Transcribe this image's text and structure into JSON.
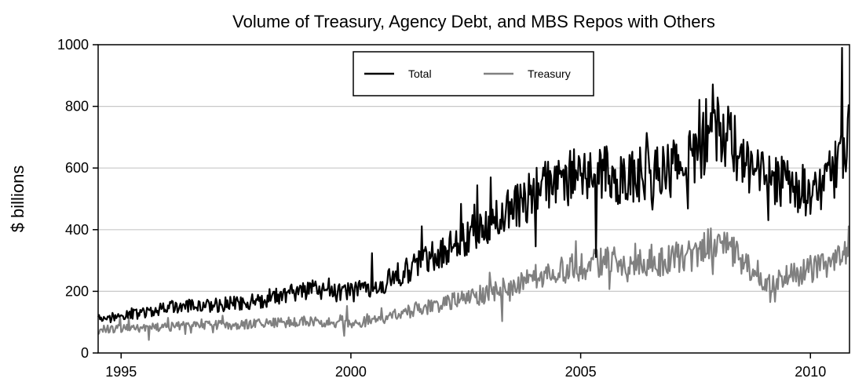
{
  "chart_data": {
    "type": "line",
    "title": "Volume of Treasury, Agency Debt, and MBS Repos with Others",
    "ylabel": "$ billions",
    "xlabel": "",
    "xlim": [
      1994.5,
      2010.85
    ],
    "ylim": [
      0,
      1000
    ],
    "x_ticks": [
      1995,
      2000,
      2005,
      2010
    ],
    "x_tick_labels": [
      "1995",
      "2000",
      "2005",
      "2010"
    ],
    "y_ticks": [
      0,
      200,
      400,
      600,
      800,
      1000
    ],
    "y_tick_labels": [
      "0",
      "200",
      "400",
      "600",
      "800",
      "1000"
    ],
    "grid": "horizontal",
    "legend_position": "top-center",
    "x_unit": "year",
    "series": [
      {
        "name": "Total",
        "color": "#000000",
        "x": [
          1994.5,
          1995.0,
          1995.5,
          1996.0,
          1996.5,
          1997.0,
          1997.5,
          1998.0,
          1998.5,
          1999.0,
          1999.5,
          2000.0,
          2000.5,
          2001.0,
          2001.5,
          2002.0,
          2002.5,
          2003.0,
          2003.5,
          2004.0,
          2004.5,
          2005.0,
          2005.5,
          2006.0,
          2006.5,
          2007.0,
          2007.5,
          2008.0,
          2008.5,
          2009.0,
          2009.5,
          2010.0,
          2010.5,
          2010.85
        ],
        "values": [
          110,
          125,
          130,
          145,
          150,
          155,
          160,
          170,
          190,
          205,
          200,
          195,
          215,
          250,
          290,
          330,
          370,
          410,
          470,
          520,
          560,
          580,
          590,
          560,
          590,
          600,
          640,
          740,
          640,
          560,
          550,
          520,
          580,
          720
        ]
      },
      {
        "name": "Treasury",
        "color": "#808080",
        "x": [
          1994.5,
          1995.0,
          1995.5,
          1996.0,
          1996.5,
          1997.0,
          1997.5,
          1998.0,
          1998.5,
          1999.0,
          1999.5,
          2000.0,
          2000.5,
          2001.0,
          2001.5,
          2002.0,
          2002.5,
          2003.0,
          2003.5,
          2004.0,
          2004.5,
          2005.0,
          2005.5,
          2006.0,
          2006.5,
          2007.0,
          2007.5,
          2008.0,
          2008.5,
          2009.0,
          2009.5,
          2010.0,
          2010.5,
          2010.85
        ],
        "values": [
          75,
          80,
          82,
          85,
          88,
          90,
          92,
          95,
          98,
          102,
          100,
          95,
          105,
          125,
          145,
          160,
          175,
          195,
          215,
          245,
          270,
          280,
          300,
          290,
          295,
          305,
          320,
          380,
          300,
          220,
          245,
          270,
          300,
          360
        ]
      }
    ]
  }
}
